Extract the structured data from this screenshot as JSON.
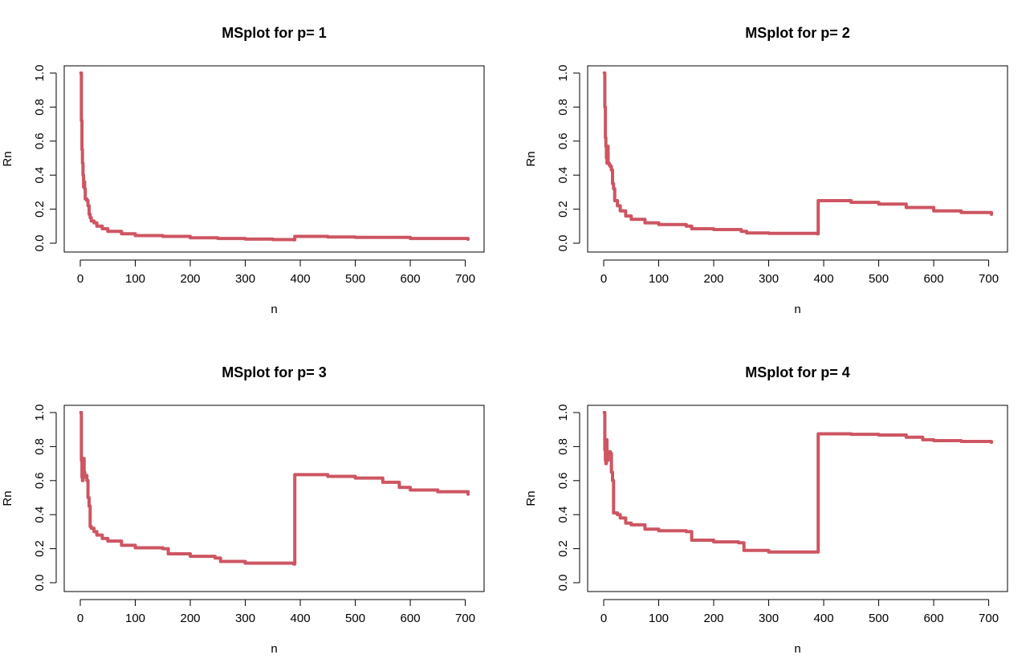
{
  "figure": {
    "colors": {
      "line": "#CD5562"
    }
  },
  "chart_data": [
    {
      "type": "line",
      "title": "MSplot for p= 1",
      "xlabel": "n",
      "ylabel": "Rn",
      "xlim": [
        0,
        705
      ],
      "ylim": [
        0,
        1
      ],
      "xticks": [
        0,
        100,
        200,
        300,
        400,
        500,
        600,
        700
      ],
      "yticks": [
        0.0,
        0.2,
        0.4,
        0.6,
        0.8,
        1.0
      ],
      "xtick_labels": [
        "0",
        "100",
        "200",
        "300",
        "400",
        "500",
        "600",
        "700"
      ],
      "ytick_labels": [
        "0.0",
        "0.2",
        "0.4",
        "0.6",
        "0.8",
        "1.0"
      ],
      "grid": false,
      "series": [
        {
          "x": [
            1,
            2,
            3,
            4,
            5,
            6,
            7,
            8,
            9,
            10,
            12,
            14,
            16,
            18,
            20,
            25,
            30,
            40,
            50,
            75,
            100,
            150,
            200,
            250,
            300,
            350,
            388,
            390,
            450,
            500,
            600,
            705
          ],
          "y": [
            1.0,
            0.72,
            0.55,
            0.47,
            0.4,
            0.33,
            0.36,
            0.32,
            0.26,
            0.26,
            0.25,
            0.22,
            0.17,
            0.15,
            0.13,
            0.12,
            0.1,
            0.085,
            0.07,
            0.055,
            0.045,
            0.04,
            0.032,
            0.028,
            0.024,
            0.021,
            0.02,
            0.04,
            0.037,
            0.034,
            0.028,
            0.023
          ]
        }
      ]
    },
    {
      "type": "line",
      "title": "MSplot for p= 2",
      "xlabel": "n",
      "ylabel": "Rn",
      "xlim": [
        0,
        705
      ],
      "ylim": [
        0,
        1
      ],
      "xticks": [
        0,
        100,
        200,
        300,
        400,
        500,
        600,
        700
      ],
      "yticks": [
        0.0,
        0.2,
        0.4,
        0.6,
        0.8,
        1.0
      ],
      "xtick_labels": [
        "0",
        "100",
        "200",
        "300",
        "400",
        "500",
        "600",
        "700"
      ],
      "ytick_labels": [
        "0.0",
        "0.2",
        "0.4",
        "0.6",
        "0.8",
        "1.0"
      ],
      "grid": false,
      "series": [
        {
          "x": [
            1,
            2,
            3,
            4,
            5,
            6,
            7,
            8,
            10,
            12,
            14,
            16,
            18,
            20,
            25,
            30,
            40,
            50,
            75,
            100,
            150,
            160,
            200,
            250,
            260,
            300,
            388,
            390,
            450,
            500,
            550,
            600,
            650,
            705
          ],
          "y": [
            1.0,
            0.8,
            0.62,
            0.57,
            0.5,
            0.47,
            0.57,
            0.47,
            0.46,
            0.45,
            0.43,
            0.35,
            0.32,
            0.25,
            0.22,
            0.19,
            0.16,
            0.14,
            0.12,
            0.11,
            0.1,
            0.085,
            0.08,
            0.07,
            0.06,
            0.058,
            0.055,
            0.25,
            0.24,
            0.23,
            0.21,
            0.19,
            0.18,
            0.17
          ]
        }
      ]
    },
    {
      "type": "line",
      "title": "MSplot for p= 3",
      "xlabel": "n",
      "ylabel": "Rn",
      "xlim": [
        0,
        705
      ],
      "ylim": [
        0,
        1
      ],
      "xticks": [
        0,
        100,
        200,
        300,
        400,
        500,
        600,
        700
      ],
      "yticks": [
        0.0,
        0.2,
        0.4,
        0.6,
        0.8,
        1.0
      ],
      "xtick_labels": [
        "0",
        "100",
        "200",
        "300",
        "400",
        "500",
        "600",
        "700"
      ],
      "ytick_labels": [
        "0.0",
        "0.2",
        "0.4",
        "0.6",
        "0.8",
        "1.0"
      ],
      "grid": false,
      "series": [
        {
          "x": [
            1,
            2,
            3,
            4,
            5,
            6,
            7,
            8,
            10,
            12,
            14,
            16,
            18,
            20,
            25,
            30,
            40,
            50,
            75,
            100,
            150,
            160,
            200,
            245,
            255,
            300,
            388,
            390,
            450,
            500,
            550,
            580,
            600,
            650,
            705
          ],
          "y": [
            1.0,
            0.72,
            0.62,
            0.6,
            0.65,
            0.73,
            0.65,
            0.62,
            0.63,
            0.6,
            0.5,
            0.45,
            0.33,
            0.32,
            0.3,
            0.28,
            0.26,
            0.245,
            0.22,
            0.205,
            0.2,
            0.17,
            0.155,
            0.145,
            0.125,
            0.115,
            0.11,
            0.635,
            0.625,
            0.615,
            0.59,
            0.56,
            0.545,
            0.535,
            0.52
          ]
        }
      ]
    },
    {
      "type": "line",
      "title": "MSplot for p= 4",
      "xlabel": "n",
      "ylabel": "Rn",
      "xlim": [
        0,
        705
      ],
      "ylim": [
        0,
        1
      ],
      "xticks": [
        0,
        100,
        200,
        300,
        400,
        500,
        600,
        700
      ],
      "yticks": [
        0.0,
        0.2,
        0.4,
        0.6,
        0.8,
        1.0
      ],
      "xtick_labels": [
        "0",
        "100",
        "200",
        "300",
        "400",
        "500",
        "600",
        "700"
      ],
      "ytick_labels": [
        "0.0",
        "0.2",
        "0.4",
        "0.6",
        "0.8",
        "1.0"
      ],
      "grid": false,
      "series": [
        {
          "x": [
            1,
            2,
            3,
            4,
            5,
            6,
            7,
            8,
            10,
            12,
            14,
            16,
            18,
            20,
            25,
            30,
            40,
            50,
            75,
            100,
            150,
            160,
            200,
            245,
            255,
            300,
            388,
            390,
            450,
            500,
            550,
            580,
            600,
            650,
            705
          ],
          "y": [
            1.0,
            0.78,
            0.72,
            0.7,
            0.84,
            0.77,
            0.72,
            0.77,
            0.77,
            0.76,
            0.65,
            0.6,
            0.41,
            0.41,
            0.4,
            0.38,
            0.35,
            0.34,
            0.315,
            0.305,
            0.3,
            0.25,
            0.24,
            0.235,
            0.19,
            0.18,
            0.18,
            0.875,
            0.872,
            0.868,
            0.855,
            0.84,
            0.835,
            0.83,
            0.825
          ]
        }
      ]
    }
  ]
}
